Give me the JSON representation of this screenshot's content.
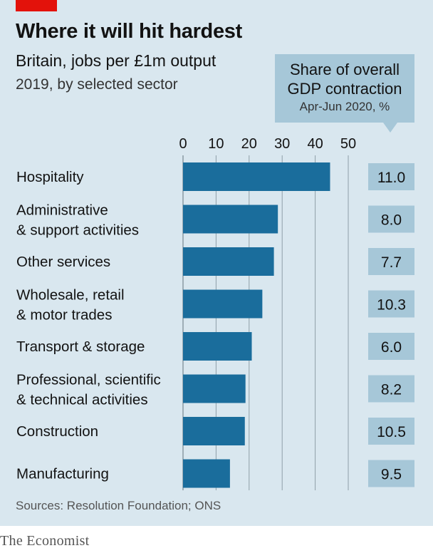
{
  "title": "Where it will hit hardest",
  "subtitle": "Britain, jobs per £1m output",
  "subtitle2": "2019, by selected sector",
  "callout": {
    "line1": "Share of overall",
    "line2": "GDP contraction",
    "line3": "Apr-Jun 2020, %"
  },
  "source": "Sources: Resolution Foundation; ONS",
  "brand": "The Economist",
  "colors": {
    "background": "#d9e7ef",
    "bar": "#1a6d9c",
    "value_box": "#a6c7d8",
    "gridline": "#8f9fa8",
    "brand_red": "#e3120b"
  },
  "chart_data": {
    "type": "bar",
    "orientation": "horizontal",
    "xlim": [
      0,
      50
    ],
    "xticks": [
      0,
      10,
      20,
      30,
      40,
      50
    ],
    "grid": true,
    "categories": [
      [
        "Hospitality"
      ],
      [
        "Administrative",
        "& support activities"
      ],
      [
        "Other services"
      ],
      [
        "Wholesale, retail",
        "& motor trades"
      ],
      [
        "Transport & storage"
      ],
      [
        "Professional, scientific",
        "& technical activities"
      ],
      [
        "Construction"
      ],
      [
        "Manufacturing"
      ]
    ],
    "values": [
      44.5,
      28.7,
      27.5,
      24.0,
      20.8,
      18.9,
      18.7,
      14.2
    ],
    "gdp_contraction_share": [
      "11.0",
      "8.0",
      "7.7",
      "10.3",
      "6.0",
      "8.2",
      "10.5",
      "9.5"
    ]
  }
}
